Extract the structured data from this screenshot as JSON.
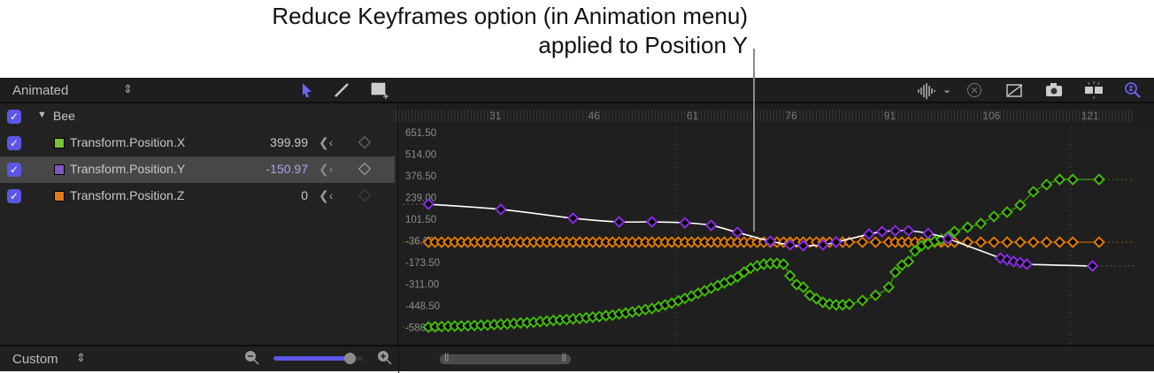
{
  "annotation": {
    "line1": "Reduce Keyframes option (in Animation menu)",
    "line2": "applied to Position Y"
  },
  "left_panel": {
    "filter": "Animated",
    "tools": [
      "arrow-tool-icon",
      "pen-tool-icon",
      "marquee-add-tool-icon"
    ],
    "group": {
      "label": "Bee",
      "checked": true
    },
    "channels": [
      {
        "label": "Transform.Position.X",
        "value": "399.99",
        "color": "#7ac231",
        "checked": true,
        "selected": false
      },
      {
        "label": "Transform.Position.Y",
        "value": "-150.97",
        "color": "#7e57c2",
        "checked": true,
        "selected": true
      },
      {
        "label": "Transform.Position.Z",
        "value": "0",
        "color": "#e07b1d",
        "checked": true,
        "selected": false
      }
    ]
  },
  "bottom": {
    "curve_set": "Custom",
    "zoom_slider_percent": 85
  },
  "toolbar_icons": [
    "audio-waveform-icon",
    "chevron-down-icon",
    "clear-x-icon",
    "curve-transform-icon",
    "snapshot-camera-icon",
    "flip-split-icon",
    "zoom-fit-icon"
  ],
  "colors": {
    "accent": "#5b57e6",
    "x": "#44b80c",
    "y": "#8a2be2",
    "z": "#e07b00",
    "selected_curve": "#ffffff"
  },
  "chart_data": {
    "type": "line",
    "ruler_ticks": [
      "31",
      "46",
      "61",
      "76",
      "91",
      "106",
      "121"
    ],
    "y_tick_labels": [
      "651.50",
      "514.00",
      "376.50",
      "239.00",
      "101.50",
      "-36.00",
      "-173.50",
      "-311.00",
      "-448.50",
      "-586.00"
    ],
    "ylim": [
      -586,
      651.5
    ],
    "series": [
      {
        "name": "Transform.Position.Z",
        "color": "#e07b00",
        "keyframes": [
          [
            22,
            0
          ],
          [
            23,
            0
          ],
          [
            24,
            0
          ],
          [
            25,
            0
          ],
          [
            26,
            0
          ],
          [
            27,
            0
          ],
          [
            28,
            0
          ],
          [
            29,
            0
          ],
          [
            30,
            0
          ],
          [
            31,
            0
          ],
          [
            32,
            0
          ],
          [
            33,
            0
          ],
          [
            34,
            0
          ],
          [
            35,
            0
          ],
          [
            36,
            0
          ],
          [
            37,
            0
          ],
          [
            38,
            0
          ],
          [
            39,
            0
          ],
          [
            40,
            0
          ],
          [
            41,
            0
          ],
          [
            42,
            0
          ],
          [
            43,
            0
          ],
          [
            44,
            0
          ],
          [
            45,
            0
          ],
          [
            46,
            0
          ],
          [
            47,
            0
          ],
          [
            48,
            0
          ],
          [
            49,
            0
          ],
          [
            50,
            0
          ],
          [
            51,
            0
          ],
          [
            52,
            0
          ],
          [
            53,
            0
          ],
          [
            54,
            0
          ],
          [
            55,
            0
          ],
          [
            56,
            0
          ],
          [
            57,
            0
          ],
          [
            58,
            0
          ],
          [
            59,
            0
          ],
          [
            60,
            0
          ],
          [
            61,
            0
          ],
          [
            62,
            0
          ],
          [
            63,
            0
          ],
          [
            64,
            0
          ],
          [
            65,
            0
          ],
          [
            66,
            0
          ],
          [
            67,
            0
          ],
          [
            68,
            0
          ],
          [
            69,
            0
          ],
          [
            70,
            0
          ],
          [
            71,
            0
          ],
          [
            72,
            0
          ],
          [
            73,
            0
          ],
          [
            74,
            0
          ],
          [
            75,
            0
          ],
          [
            76,
            0
          ],
          [
            77,
            0
          ],
          [
            78,
            0
          ],
          [
            79,
            0
          ],
          [
            80,
            0
          ],
          [
            81,
            0
          ],
          [
            82,
            0
          ],
          [
            83,
            0
          ],
          [
            84,
            0
          ],
          [
            85,
            0
          ],
          [
            86,
            0
          ],
          [
            88,
            0
          ],
          [
            90,
            0
          ],
          [
            92,
            0
          ],
          [
            93,
            0
          ],
          [
            94,
            0
          ],
          [
            95,
            0
          ],
          [
            96,
            0
          ],
          [
            97,
            0
          ],
          [
            98,
            0
          ],
          [
            99,
            0
          ],
          [
            100,
            0
          ],
          [
            101,
            0
          ],
          [
            102,
            0
          ],
          [
            104,
            0
          ],
          [
            106,
            0
          ],
          [
            108,
            0
          ],
          [
            110,
            0
          ],
          [
            112,
            0
          ],
          [
            114,
            0
          ],
          [
            116,
            0
          ],
          [
            118,
            0
          ],
          [
            120,
            0
          ],
          [
            124,
            0
          ]
        ]
      },
      {
        "name": "Transform.Position.X",
        "color": "#44b80c",
        "keyframes": [
          [
            22,
            -539
          ],
          [
            23,
            -537
          ],
          [
            24,
            -536
          ],
          [
            25,
            -534
          ],
          [
            26,
            -533
          ],
          [
            27,
            -532
          ],
          [
            28,
            -531
          ],
          [
            29,
            -529
          ],
          [
            30,
            -528
          ],
          [
            31,
            -526
          ],
          [
            32,
            -523
          ],
          [
            33,
            -521
          ],
          [
            34,
            -519
          ],
          [
            35,
            -516
          ],
          [
            36,
            -513
          ],
          [
            37,
            -511
          ],
          [
            38,
            -508
          ],
          [
            39,
            -504
          ],
          [
            40,
            -501
          ],
          [
            41,
            -497
          ],
          [
            42,
            -494
          ],
          [
            43,
            -491
          ],
          [
            44,
            -487
          ],
          [
            45,
            -484
          ],
          [
            46,
            -480
          ],
          [
            47,
            -476
          ],
          [
            48,
            -472
          ],
          [
            49,
            -467
          ],
          [
            50,
            -463
          ],
          [
            51,
            -456
          ],
          [
            52,
            -450
          ],
          [
            53,
            -443
          ],
          [
            54,
            -436
          ],
          [
            55,
            -428
          ],
          [
            56,
            -421
          ],
          [
            57,
            -410
          ],
          [
            58,
            -398
          ],
          [
            59,
            -387
          ],
          [
            60,
            -372
          ],
          [
            61,
            -357
          ],
          [
            62,
            -342
          ],
          [
            63,
            -325
          ],
          [
            64,
            -309
          ],
          [
            65,
            -292
          ],
          [
            66,
            -275
          ],
          [
            67,
            -258
          ],
          [
            68,
            -241
          ],
          [
            69,
            -220
          ],
          [
            70,
            -190
          ],
          [
            71,
            -165
          ],
          [
            72,
            -150
          ],
          [
            73,
            -140
          ],
          [
            74,
            -135
          ],
          [
            75,
            -135
          ],
          [
            76,
            -140
          ],
          [
            77,
            -213
          ],
          [
            78,
            -269
          ],
          [
            79,
            -286
          ],
          [
            80,
            -337
          ],
          [
            81,
            -359
          ],
          [
            82,
            -382
          ],
          [
            83,
            -393
          ],
          [
            84,
            -398
          ],
          [
            85,
            -398
          ],
          [
            86,
            -393
          ],
          [
            88,
            -370
          ],
          [
            90,
            -337
          ],
          [
            92,
            -286
          ],
          [
            93,
            -191
          ],
          [
            94,
            -146
          ],
          [
            95,
            -123
          ],
          [
            96,
            -56
          ],
          [
            97,
            -22
          ],
          [
            98,
            -11
          ],
          [
            99,
            6
          ],
          [
            100,
            17
          ],
          [
            101,
            34
          ],
          [
            102,
            67
          ],
          [
            104,
            95
          ],
          [
            106,
            118
          ],
          [
            108,
            163
          ],
          [
            110,
            191
          ],
          [
            112,
            236
          ],
          [
            114,
            320
          ],
          [
            116,
            365
          ],
          [
            118,
            398
          ],
          [
            120,
            398
          ],
          [
            124,
            398
          ]
        ]
      },
      {
        "name": "Transform.Position.Y",
        "color": "#8a2be2",
        "selected": true,
        "keyframes": [
          [
            22,
            241
          ],
          [
            33,
            208
          ],
          [
            44,
            152
          ],
          [
            51,
            129
          ],
          [
            56,
            129
          ],
          [
            61,
            123
          ],
          [
            65,
            107
          ],
          [
            69,
            62
          ],
          [
            74,
            6
          ],
          [
            77,
            -17
          ],
          [
            79,
            -22
          ],
          [
            82,
            -17
          ],
          [
            84,
            0
          ],
          [
            89,
            51
          ],
          [
            91,
            67
          ],
          [
            93,
            73
          ],
          [
            95,
            73
          ],
          [
            98,
            56
          ],
          [
            101,
            22
          ],
          [
            109,
            -101
          ],
          [
            110,
            -112
          ],
          [
            111,
            -123
          ],
          [
            112,
            -129
          ],
          [
            113,
            -140
          ],
          [
            123,
            -150.97
          ]
        ]
      }
    ]
  }
}
